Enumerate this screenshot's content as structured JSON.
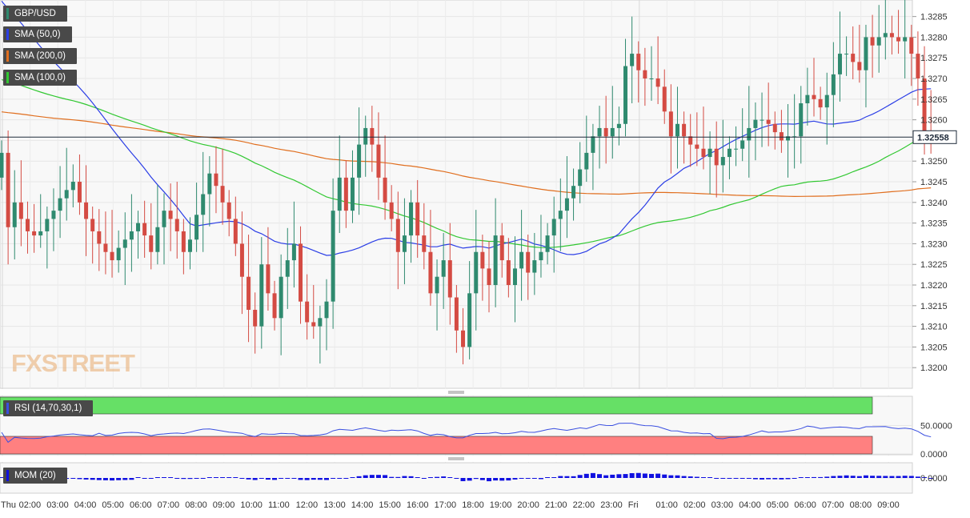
{
  "symbol": "GBP/USD",
  "indicators": {
    "sma50": "SMA (50,0)",
    "sma200": "SMA (200,0)",
    "sma100": "SMA (100,0)",
    "rsi": "RSI (14,70,30,1)",
    "mom": "MOM (20)"
  },
  "colors": {
    "up": "#2f8a6f",
    "down": "#d44b43",
    "sma50": "#2b3ee6",
    "sma200": "#e06e1e",
    "sma100": "#32c832",
    "rsi_line": "#3a4fe0",
    "rsi_overbought": "#66e066",
    "rsi_oversold": "#ff8080",
    "mom_bar": "#1010e0"
  },
  "last_price": "1.32558",
  "watermark": "FXSTREET",
  "chart_data": [
    {
      "type": "candlestick",
      "title": "GBP/USD",
      "ylim": [
        1.3195,
        1.3289
      ],
      "y_ticks": [
        "1.3200",
        "1.3205",
        "1.3210",
        "1.3215",
        "1.3220",
        "1.3225",
        "1.3230",
        "1.3235",
        "1.3240",
        "1.3245",
        "1.3250",
        "1.3255",
        "1.3260",
        "1.3265",
        "1.3270",
        "1.3275",
        "1.3280",
        "1.3285"
      ],
      "x_ticks": [
        "Thu",
        "02:00",
        "03:00",
        "04:00",
        "05:00",
        "06:00",
        "07:00",
        "08:00",
        "09:00",
        "10:00",
        "11:00",
        "12:00",
        "13:00",
        "14:00",
        "15:00",
        "16:00",
        "17:00",
        "18:00",
        "19:00",
        "20:00",
        "21:00",
        "22:00",
        "23:00",
        "Fri",
        "01:00",
        "02:00",
        "03:00",
        "04:00",
        "05:00",
        "06:00",
        "07:00",
        "08:00",
        "09:00"
      ],
      "last_price": 1.32558,
      "candle_closes": [
        1.3252,
        1.3234,
        1.324,
        1.3236,
        1.3233,
        1.3232,
        1.3233,
        1.3236,
        1.3238,
        1.3241,
        1.3243,
        1.3245,
        1.324,
        1.3236,
        1.3233,
        1.323,
        1.3228,
        1.3226,
        1.3229,
        1.3231,
        1.3233,
        1.3235,
        1.3232,
        1.3228,
        1.3234,
        1.3238,
        1.3236,
        1.3233,
        1.3228,
        1.3231,
        1.3237,
        1.3242,
        1.3247,
        1.3244,
        1.324,
        1.3236,
        1.323,
        1.3222,
        1.3214,
        1.321,
        1.3225,
        1.3218,
        1.3212,
        1.3222,
        1.3226,
        1.323,
        1.3216,
        1.3211,
        1.321,
        1.3212,
        1.3216,
        1.3238,
        1.3246,
        1.3238,
        1.3246,
        1.3254,
        1.3258,
        1.3254,
        1.3246,
        1.324,
        1.3236,
        1.3228,
        1.3232,
        1.324,
        1.3232,
        1.3228,
        1.3218,
        1.3222,
        1.3226,
        1.3217,
        1.3209,
        1.3205,
        1.3218,
        1.3228,
        1.3224,
        1.322,
        1.3232,
        1.3226,
        1.322,
        1.3224,
        1.3228,
        1.3223,
        1.3226,
        1.3228,
        1.3232,
        1.3236,
        1.3238,
        1.3241,
        1.3244,
        1.3248,
        1.3252,
        1.3256,
        1.3258,
        1.3256,
        1.3258,
        1.3259,
        1.3273,
        1.3276,
        1.3272,
        1.327,
        1.327,
        1.3268,
        1.3262,
        1.3256,
        1.3259,
        1.3256,
        1.3254,
        1.3253,
        1.3251,
        1.3253,
        1.3249,
        1.3251,
        1.3253,
        1.3253,
        1.3255,
        1.3258,
        1.326,
        1.326,
        1.3259,
        1.3257,
        1.3255,
        1.3256,
        1.3256,
        1.3264,
        1.3266,
        1.3265,
        1.3263,
        1.3266,
        1.3271,
        1.3276,
        1.3276,
        1.3274,
        1.3272,
        1.328,
        1.3278,
        1.328,
        1.3281,
        1.328,
        1.3279,
        1.328,
        1.3276,
        1.327,
        1.3257,
        1.3256
      ]
    },
    {
      "type": "line",
      "title": "RSI (14,70,30,1)",
      "y_ticks": [
        "0.0000",
        "50.0000"
      ],
      "bands": {
        "overbought_min": 70,
        "oversold_max": 30
      }
    },
    {
      "type": "bar",
      "title": "MOM (20)",
      "y_ticks": [
        "0.0000"
      ]
    }
  ]
}
